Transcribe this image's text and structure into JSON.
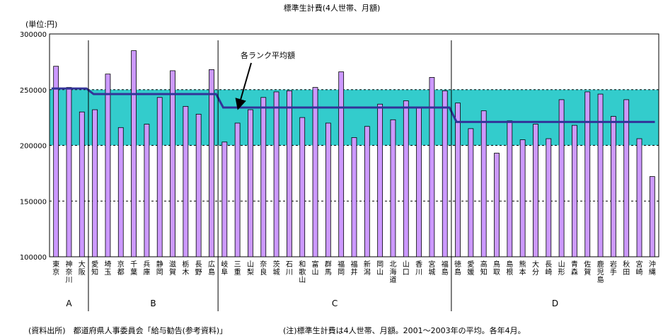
{
  "chart_data": {
    "type": "bar",
    "title": "標準生計費(4人世帯、月額)",
    "unit_label": "(単位:円)",
    "ylim": [
      100000,
      300000
    ],
    "yticks": [
      100000,
      150000,
      200000,
      250000,
      300000
    ],
    "ytick_labels": [
      "100000",
      "150000",
      "200000",
      "250000",
      "300000"
    ],
    "band": [
      200000,
      250000
    ],
    "band_color": "#33cccc",
    "bar_color": "#cc99ff",
    "line_color": "#333399",
    "categories": [
      "東京",
      "神奈川",
      "大阪",
      "愛知",
      "埼玉",
      "京都",
      "千葉",
      "兵庫",
      "静岡",
      "滋賀",
      "栃木",
      "長野",
      "広島",
      "岐阜",
      "三重",
      "山梨",
      "奈良",
      "茨城",
      "石川",
      "和歌山",
      "富山",
      "群馬",
      "福岡",
      "福井",
      "新潟",
      "岡山",
      "北海道",
      "山口",
      "香川",
      "宮城",
      "福島",
      "徳島",
      "愛媛",
      "高知",
      "鳥取",
      "島根",
      "熊本",
      "大分",
      "長崎",
      "山形",
      "青森",
      "佐賀",
      "鹿児島",
      "岩手",
      "秋田",
      "宮崎",
      "沖縄"
    ],
    "values": [
      271000,
      252000,
      230000,
      232000,
      264000,
      216000,
      285000,
      219000,
      243000,
      267000,
      235000,
      228000,
      268000,
      203000,
      220000,
      232000,
      243000,
      248000,
      249000,
      225000,
      252000,
      220000,
      266000,
      207000,
      217000,
      237000,
      223000,
      240000,
      234000,
      261000,
      249000,
      238000,
      215000,
      231000,
      193000,
      222000,
      205000,
      219000,
      206000,
      241000,
      218000,
      248000,
      246000,
      226000,
      241000,
      206000,
      172000
    ],
    "series": [
      {
        "name": "各ランク平均額",
        "type": "line",
        "values": [
          251000,
          251000,
          251000,
          246000,
          246000,
          246000,
          246000,
          246000,
          246000,
          246000,
          246000,
          246000,
          246000,
          234000,
          234000,
          234000,
          234000,
          234000,
          234000,
          234000,
          234000,
          234000,
          234000,
          234000,
          234000,
          234000,
          234000,
          234000,
          234000,
          234000,
          234000,
          221000,
          221000,
          221000,
          221000,
          221000,
          221000,
          221000,
          221000,
          221000,
          221000,
          221000,
          221000,
          221000,
          221000,
          221000,
          221000
        ]
      }
    ],
    "groups": [
      {
        "label": "A",
        "start": 0,
        "end": 2
      },
      {
        "label": "B",
        "start": 3,
        "end": 12
      },
      {
        "label": "C",
        "start": 13,
        "end": 30
      },
      {
        "label": "D",
        "start": 31,
        "end": 46
      }
    ],
    "annotation": "各ランク平均額",
    "footnote_source": "(資料出所)　都道府県人事委員会「給与勧告(参考資料)」",
    "footnote_note": "(注)標準生計費は4人世帯、月額。2001～2003年の平均。各年4月。"
  }
}
